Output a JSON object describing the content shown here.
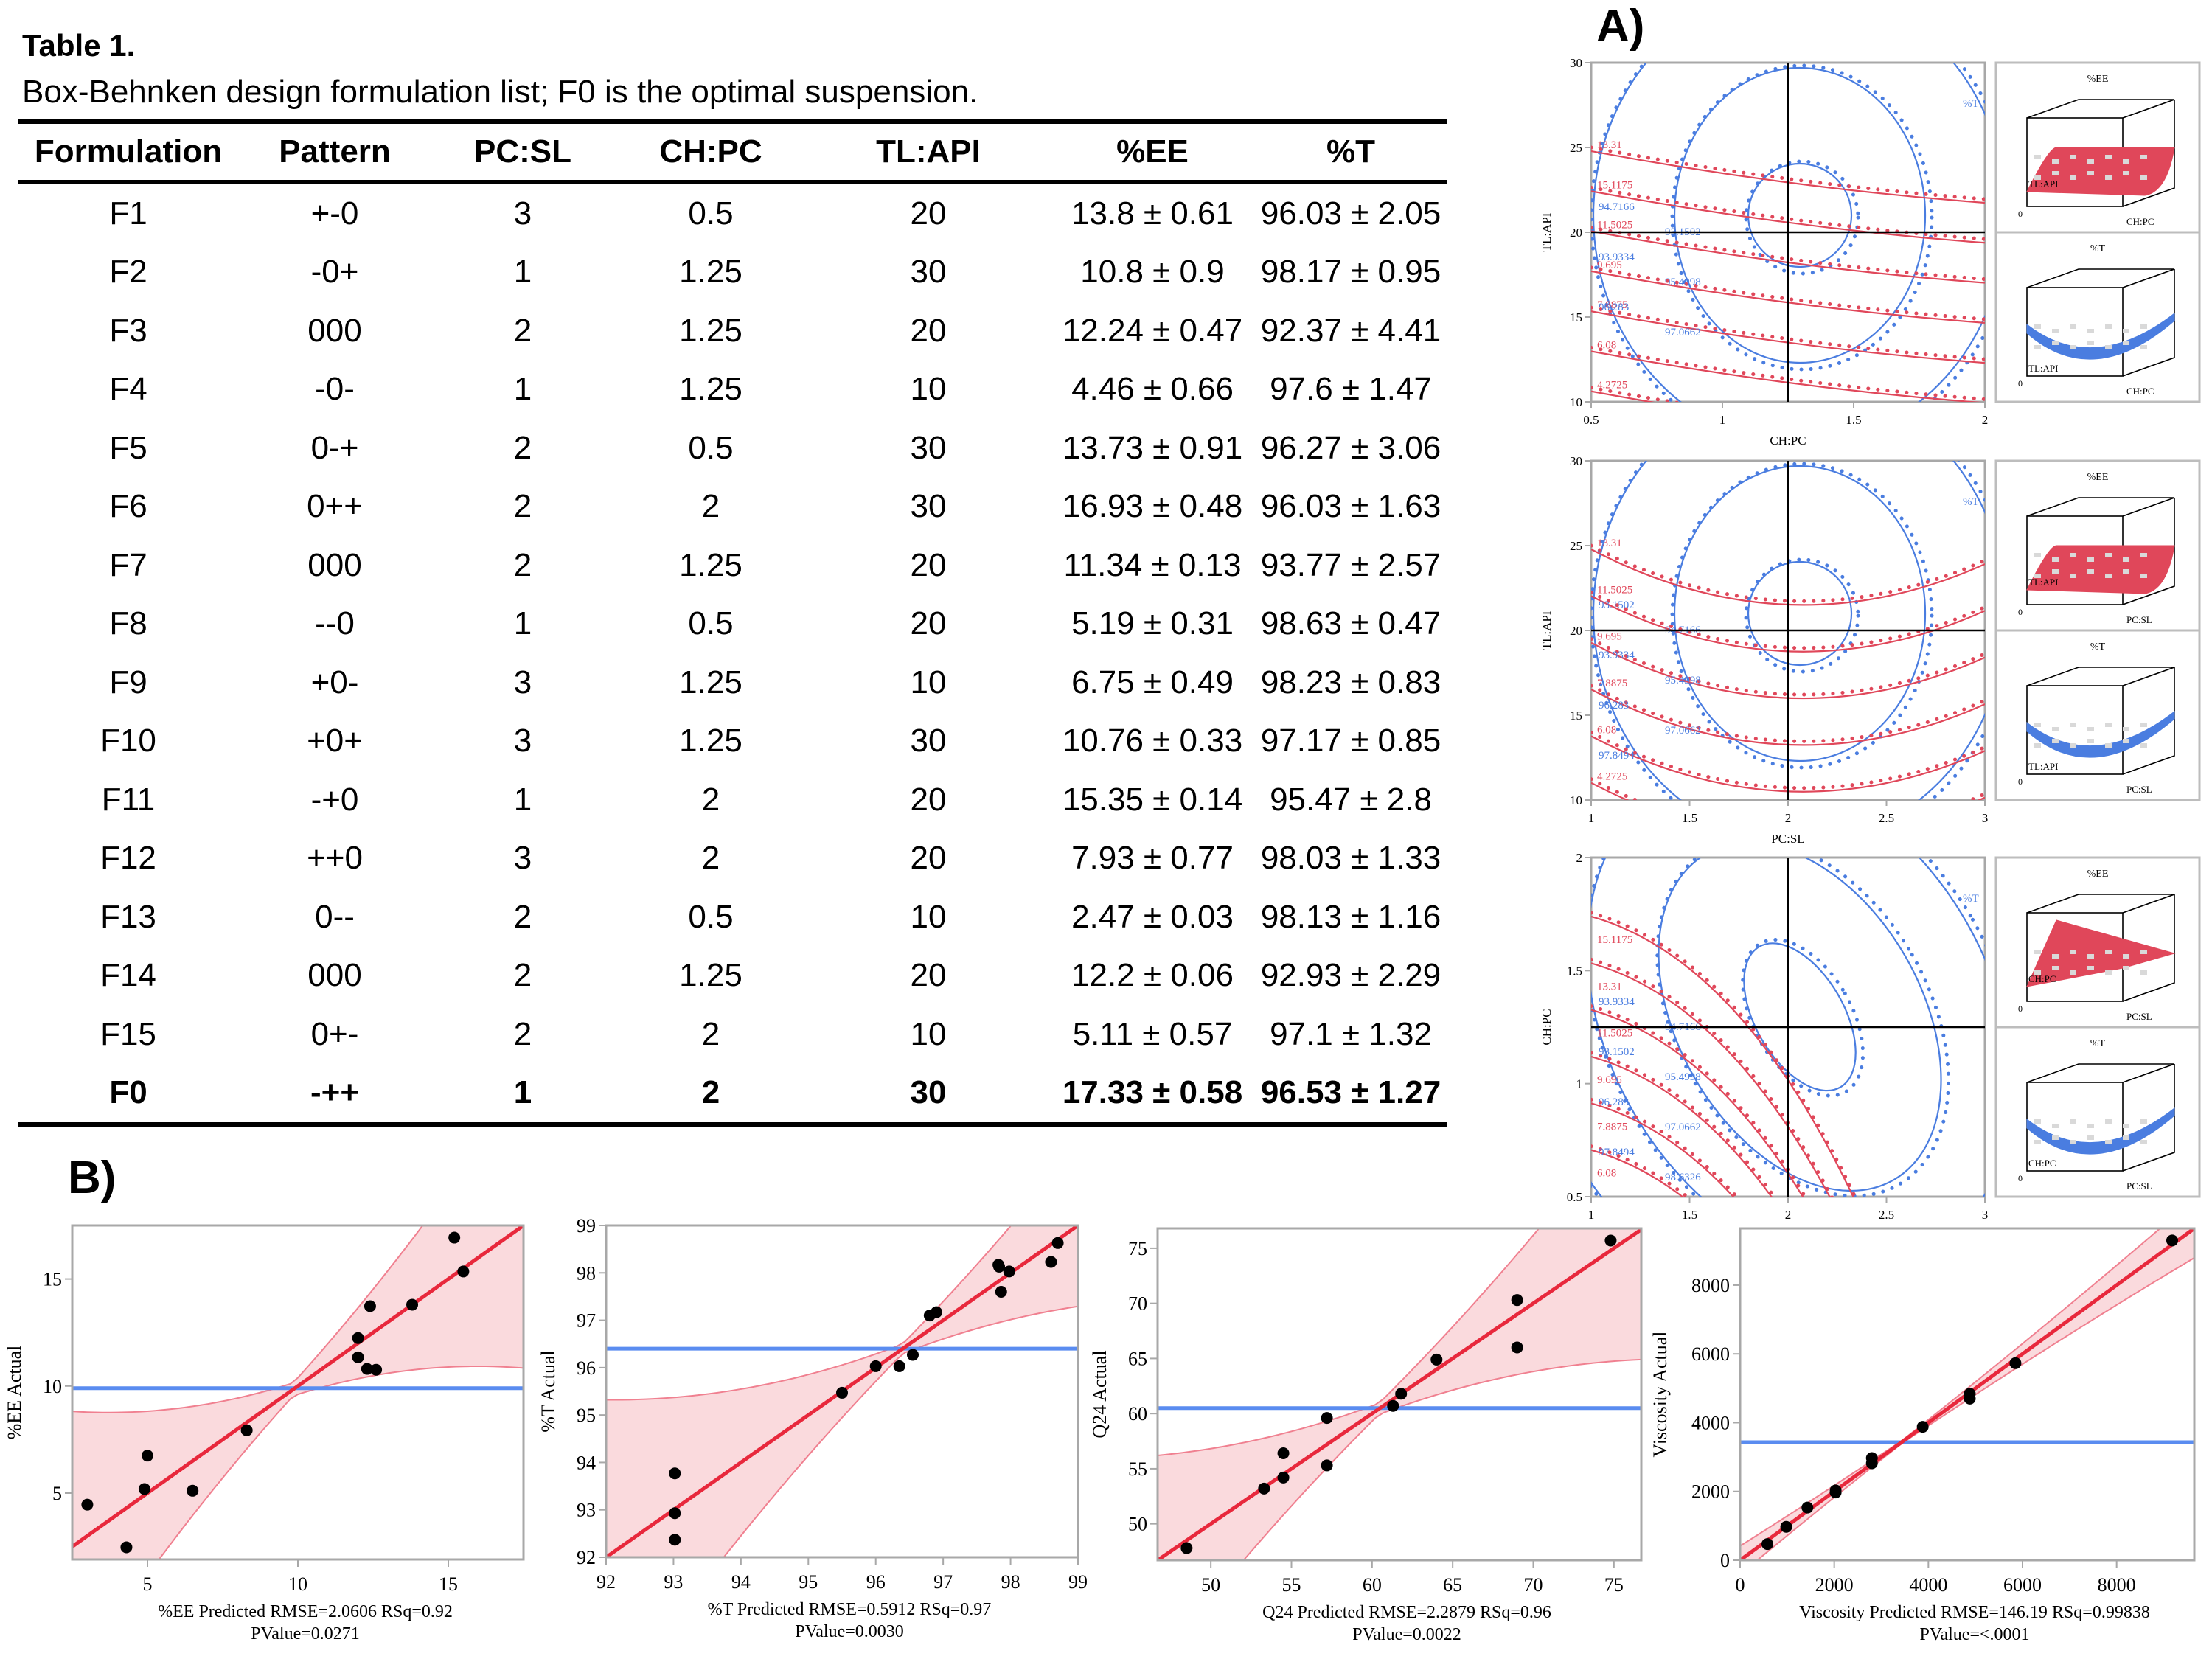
{
  "table": {
    "title": "Table 1.",
    "caption": "Box-Behnken design formulation list; F0 is the optimal suspension.",
    "columns": [
      "Formulation",
      "Pattern",
      "PC:SL",
      "CH:PC",
      "TL:API",
      "%EE",
      "%T"
    ],
    "rows": [
      [
        "F1",
        "+-0",
        "3",
        "0.5",
        "20",
        "13.8 ± 0.61",
        "96.03 ± 2.05"
      ],
      [
        "F2",
        "-0+",
        "1",
        "1.25",
        "30",
        "10.8 ± 0.9",
        "98.17 ± 0.95"
      ],
      [
        "F3",
        "000",
        "2",
        "1.25",
        "20",
        "12.24 ± 0.47",
        "92.37 ± 4.41"
      ],
      [
        "F4",
        "-0-",
        "1",
        "1.25",
        "10",
        "4.46 ± 0.66",
        "97.6 ± 1.47"
      ],
      [
        "F5",
        "0-+",
        "2",
        "0.5",
        "30",
        "13.73 ± 0.91",
        "96.27 ± 3.06"
      ],
      [
        "F6",
        "0++",
        "2",
        "2",
        "30",
        "16.93 ± 0.48",
        "96.03 ± 1.63"
      ],
      [
        "F7",
        "000",
        "2",
        "1.25",
        "20",
        "11.34 ± 0.13",
        "93.77 ± 2.57"
      ],
      [
        "F8",
        "--0",
        "1",
        "0.5",
        "20",
        "5.19 ± 0.31",
        "98.63 ± 0.47"
      ],
      [
        "F9",
        "+0-",
        "3",
        "1.25",
        "10",
        "6.75 ± 0.49",
        "98.23 ± 0.83"
      ],
      [
        "F10",
        "+0+",
        "3",
        "1.25",
        "30",
        "10.76 ± 0.33",
        "97.17 ± 0.85"
      ],
      [
        "F11",
        "-+0",
        "1",
        "2",
        "20",
        "15.35 ± 0.14",
        "95.47 ± 2.8"
      ],
      [
        "F12",
        "++0",
        "3",
        "2",
        "20",
        "7.93 ± 0.77",
        "98.03 ± 1.33"
      ],
      [
        "F13",
        "0--",
        "2",
        "0.5",
        "10",
        "2.47 ± 0.03",
        "98.13 ± 1.16"
      ],
      [
        "F14",
        "000",
        "2",
        "1.25",
        "20",
        "12.2 ± 0.06",
        "92.93 ± 2.29"
      ],
      [
        "F15",
        "0+-",
        "2",
        "2",
        "10",
        "5.11 ± 0.57",
        "97.1 ± 1.32"
      ],
      [
        "F0",
        "-++",
        "1",
        "2",
        "30",
        "17.33 ± 0.58",
        "96.53 ± 1.27"
      ]
    ],
    "optimal_row": "F0"
  },
  "panel_labels": {
    "a": "A)",
    "b": "B)"
  },
  "colors": {
    "ee": "#e0475a",
    "t": "#4a7de0",
    "mean": "#5a8cf0",
    "fit": "#e8283c",
    "band": "#fadadd",
    "axis": "#a8a8a8"
  },
  "chart_data": [
    {
      "type": "contour",
      "id": "contour-chpc-tlapi",
      "xlabel": "CH:PC",
      "ylabel": "TL:API",
      "xlim": [
        0.5,
        2
      ],
      "ylim": [
        10,
        30
      ],
      "xticks": [
        "0.5",
        "1",
        "1.5",
        "2"
      ],
      "yticks": [
        "10",
        "15",
        "20",
        "25",
        "30"
      ],
      "crosshair": {
        "x": 1.25,
        "y": 20
      },
      "ee_labels": [
        "13.31",
        "15.1175",
        "11.5025",
        "9.695",
        "7.8875",
        "6.08",
        "4.2725"
      ],
      "t_labels": [
        "94.7166",
        "93.1502",
        "93.9334",
        "95.4998",
        "96.283",
        "97.0662"
      ],
      "t_corner_label": "%T",
      "surfaces": [
        {
          "title": "%EE",
          "axis_left": "TL:API",
          "axis_right": "CH:PC",
          "origin": "0",
          "shape": "flat"
        },
        {
          "title": "%T",
          "axis_left": "TL:API",
          "axis_right": "CH:PC",
          "origin": "0",
          "shape": "bowl"
        }
      ]
    },
    {
      "type": "contour",
      "id": "contour-pcsl-tlapi",
      "xlabel": "PC:SL",
      "ylabel": "TL:API",
      "xlim": [
        1,
        3
      ],
      "ylim": [
        10,
        30
      ],
      "xticks": [
        "1",
        "1.5",
        "2",
        "2.5",
        "3"
      ],
      "yticks": [
        "10",
        "15",
        "20",
        "25",
        "30"
      ],
      "crosshair": {
        "x": 2,
        "y": 20
      },
      "ee_labels": [
        "13.31",
        "11.5025",
        "9.695",
        "7.8875",
        "6.08",
        "4.2725"
      ],
      "t_labels": [
        "93.1502",
        "94.7166",
        "93.9334",
        "95.4998",
        "96.283",
        "97.0662",
        "97.8494"
      ],
      "t_corner_label": "%T",
      "surfaces": [
        {
          "title": "%EE",
          "axis_left": "TL:API",
          "axis_right": "PC:SL",
          "origin": "0",
          "shape": "dome"
        },
        {
          "title": "%T",
          "axis_left": "TL:API",
          "axis_right": "PC:SL",
          "origin": "0",
          "shape": "bowl"
        }
      ]
    },
    {
      "type": "contour",
      "id": "contour-pcsl-chpc",
      "xlabel": "PC:SL",
      "ylabel": "CH:PC",
      "xlim": [
        1,
        3
      ],
      "ylim": [
        0.5,
        2
      ],
      "xticks": [
        "1",
        "1.5",
        "2",
        "2.5",
        "3"
      ],
      "yticks": [
        "0.5",
        "1",
        "1.5",
        "2"
      ],
      "crosshair": {
        "x": 2,
        "y": 1.25
      },
      "ee_labels": [
        "15.1175",
        "13.31",
        "11.5025",
        "9.695",
        "7.8875",
        "6.08"
      ],
      "t_labels": [
        "93.9334",
        "94.7166",
        "93.1502",
        "95.4998",
        "96.283",
        "97.0662",
        "97.8494",
        "98.6326"
      ],
      "t_corner_label": "%T",
      "surfaces": [
        {
          "title": "%EE",
          "axis_left": "CH:PC",
          "axis_right": "PC:SL",
          "origin": "0",
          "shape": "ridge"
        },
        {
          "title": "%T",
          "axis_left": "CH:PC",
          "axis_right": "PC:SL",
          "origin": "0",
          "shape": "bowl"
        }
      ]
    },
    {
      "type": "scatter",
      "id": "fit-ee",
      "xlabel": "%EE Predicted RMSE=2.0606 RSq=0.92",
      "subtitle": "PValue=0.0271",
      "ylabel": "%EE Actual",
      "xlim": [
        2.5,
        17.5
      ],
      "ylim": [
        1.9,
        17.5
      ],
      "xticks": [
        5,
        10,
        15
      ],
      "yticks": [
        5,
        10,
        15
      ],
      "mean": 9.9,
      "band_halfwidth_min": 0.3,
      "band_spread": 0.55,
      "points": [
        [
          3.0,
          4.46
        ],
        [
          4.3,
          2.47
        ],
        [
          4.9,
          5.19
        ],
        [
          5.0,
          6.75
        ],
        [
          6.5,
          5.11
        ],
        [
          8.3,
          7.93
        ],
        [
          12.0,
          12.24
        ],
        [
          12.0,
          11.34
        ],
        [
          12.3,
          10.8
        ],
        [
          12.4,
          13.73
        ],
        [
          12.6,
          10.76
        ],
        [
          13.8,
          13.8
        ],
        [
          15.2,
          16.93
        ],
        [
          15.5,
          15.35
        ]
      ]
    },
    {
      "type": "scatter",
      "id": "fit-t",
      "xlabel": "%T Predicted RMSE=0.5912 RSq=0.97",
      "subtitle": "PValue=0.0030",
      "ylabel": "%T Actual",
      "xlim": [
        92,
        99
      ],
      "ylim": [
        92,
        99
      ],
      "xticks": [
        92,
        93,
        94,
        95,
        96,
        97,
        98,
        99
      ],
      "yticks": [
        92,
        93,
        94,
        95,
        96,
        97,
        98,
        99
      ],
      "mean": 96.4,
      "band_halfwidth_min": 0.1,
      "band_spread": 0.45,
      "points": [
        [
          93.02,
          93.77
        ],
        [
          93.02,
          92.93
        ],
        [
          93.02,
          92.37
        ],
        [
          95.5,
          95.47
        ],
        [
          96.0,
          96.03
        ],
        [
          96.35,
          96.03
        ],
        [
          96.55,
          96.27
        ],
        [
          96.8,
          97.1
        ],
        [
          96.9,
          97.17
        ],
        [
          97.82,
          98.17
        ],
        [
          97.83,
          98.13
        ],
        [
          97.86,
          97.6
        ],
        [
          97.98,
          98.03
        ],
        [
          98.6,
          98.23
        ],
        [
          98.7,
          98.63
        ]
      ]
    },
    {
      "type": "scatter",
      "id": "fit-q24",
      "xlabel": "Q24 Predicted RMSE=2.2879 RSq=0.96",
      "subtitle": "PValue=0.0022",
      "ylabel": "Q24 Actual",
      "xlim": [
        46.7,
        76.7
      ],
      "ylim": [
        46.7,
        76.8
      ],
      "xticks": [
        50,
        55,
        60,
        65,
        70,
        75
      ],
      "yticks": [
        50,
        55,
        60,
        65,
        70,
        75
      ],
      "mean": 60.5,
      "band_halfwidth_min": 0.5,
      "band_spread": 0.45,
      "points": [
        [
          48.5,
          47.8
        ],
        [
          53.3,
          53.2
        ],
        [
          54.5,
          56.4
        ],
        [
          54.5,
          54.2
        ],
        [
          57.2,
          59.6
        ],
        [
          57.2,
          55.3
        ],
        [
          61.3,
          60.7
        ],
        [
          61.8,
          61.8
        ],
        [
          64.0,
          64.9
        ],
        [
          69.0,
          70.3
        ],
        [
          69.0,
          66.0
        ],
        [
          74.8,
          75.7
        ]
      ]
    },
    {
      "type": "scatter",
      "id": "fit-viscosity",
      "xlabel": "Viscosity Predicted RMSE=146.19 RSq=0.99838",
      "subtitle": "PValue=<.0001",
      "ylabel": "Viscosity Actual",
      "xlim": [
        0,
        9650
      ],
      "ylim": [
        0,
        9650
      ],
      "xticks": [
        0,
        2000,
        4000,
        6000,
        8000
      ],
      "yticks": [
        0,
        2000,
        4000,
        6000,
        8000
      ],
      "mean": 3430,
      "band_halfwidth_min": 40,
      "band_spread": 0.08,
      "points": [
        [
          580,
          470
        ],
        [
          980,
          970
        ],
        [
          1430,
          1530
        ],
        [
          2030,
          1970
        ],
        [
          2030,
          2030
        ],
        [
          2800,
          2820
        ],
        [
          2800,
          2970
        ],
        [
          3880,
          3880
        ],
        [
          4880,
          4700
        ],
        [
          4880,
          4840
        ],
        [
          5850,
          5730
        ],
        [
          9180,
          9300
        ]
      ]
    }
  ]
}
